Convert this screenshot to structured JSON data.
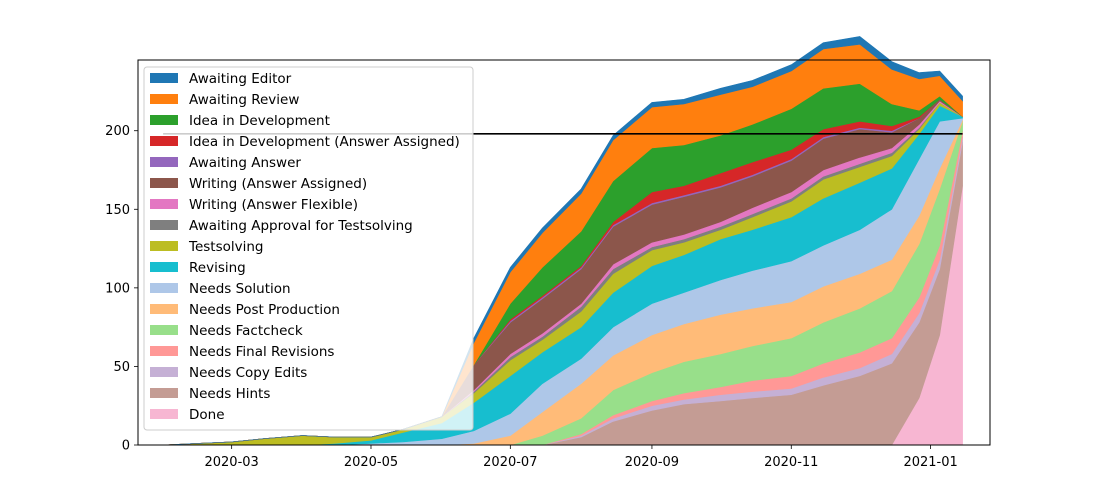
{
  "chart_data": {
    "type": "area",
    "stacked": true,
    "title": "",
    "xlabel": "",
    "ylabel": "",
    "x_axis": {
      "kind": "date",
      "range": [
        "2020-01-20",
        "2021-01-27"
      ],
      "ticks": [
        {
          "date": "2020-03-01",
          "label": "2020-03"
        },
        {
          "date": "2020-05-01",
          "label": "2020-05"
        },
        {
          "date": "2020-07-01",
          "label": "2020-07"
        },
        {
          "date": "2020-09-01",
          "label": "2020-09"
        },
        {
          "date": "2020-11-01",
          "label": "2020-11"
        },
        {
          "date": "2021-01-01",
          "label": "2021-01"
        }
      ]
    },
    "y_axis": {
      "range": [
        0,
        245
      ],
      "ticks": [
        0,
        50,
        100,
        150,
        200
      ]
    },
    "grid": false,
    "legend_position": "upper-left",
    "reference_line": {
      "y": 198,
      "color": "#000000",
      "x_start": "2020-01-31",
      "x_end": "2021-01-15"
    },
    "dates": [
      "2020-01-31",
      "2020-02-15",
      "2020-03-01",
      "2020-03-15",
      "2020-04-01",
      "2020-04-15",
      "2020-05-01",
      "2020-05-15",
      "2020-06-01",
      "2020-06-15",
      "2020-07-01",
      "2020-07-15",
      "2020-08-01",
      "2020-08-15",
      "2020-09-01",
      "2020-09-15",
      "2020-10-01",
      "2020-10-15",
      "2020-11-01",
      "2020-11-15",
      "2020-12-01",
      "2020-12-15",
      "2020-12-27",
      "2021-01-05",
      "2021-01-15"
    ],
    "series": [
      {
        "name": "Done",
        "color": "#f7b6d2",
        "values": [
          0,
          0,
          0,
          0,
          0,
          0,
          0,
          0,
          0,
          0,
          0,
          0,
          0,
          0,
          0,
          0,
          0,
          0,
          0,
          0,
          0,
          0,
          30,
          70,
          165
        ]
      },
      {
        "name": "Needs Hints",
        "color": "#c49c94",
        "values": [
          0,
          0,
          0,
          0,
          0,
          0,
          0,
          0,
          0,
          0,
          0,
          0,
          5,
          15,
          22,
          26,
          28,
          30,
          32,
          38,
          44,
          52,
          48,
          42,
          28
        ]
      },
      {
        "name": "Needs Copy Edits",
        "color": "#c5b0d5",
        "values": [
          0,
          0,
          0,
          0,
          0,
          0,
          0,
          0,
          0,
          0,
          0,
          0,
          1,
          2,
          3,
          3,
          4,
          4,
          4,
          5,
          5,
          6,
          6,
          6,
          3
        ]
      },
      {
        "name": "Needs Final Revisions",
        "color": "#ff9896",
        "values": [
          0,
          0,
          0,
          0,
          0,
          0,
          0,
          0,
          0,
          0,
          0,
          0,
          1,
          2,
          3,
          4,
          5,
          7,
          8,
          9,
          10,
          10,
          10,
          9,
          4
        ]
      },
      {
        "name": "Needs Factcheck",
        "color": "#98df8a",
        "values": [
          0,
          0,
          0,
          0,
          0,
          0,
          0,
          0,
          0,
          0,
          0,
          6,
          10,
          16,
          18,
          20,
          21,
          22,
          24,
          26,
          28,
          30,
          34,
          36,
          6
        ]
      },
      {
        "name": "Needs Post Production",
        "color": "#ffbb78",
        "values": [
          0,
          0,
          0,
          0,
          0,
          0,
          0,
          0,
          0,
          1,
          6,
          15,
          22,
          22,
          24,
          24,
          25,
          24,
          23,
          23,
          22,
          20,
          18,
          13,
          1
        ]
      },
      {
        "name": "Needs Solution",
        "color": "#aec7e8",
        "values": [
          0,
          0,
          0,
          0,
          0,
          0,
          1,
          2,
          4,
          8,
          14,
          18,
          16,
          18,
          20,
          20,
          22,
          24,
          26,
          26,
          28,
          32,
          36,
          30,
          1
        ]
      },
      {
        "name": "Revising",
        "color": "#17becf",
        "values": [
          0,
          0,
          0,
          0,
          0,
          1,
          2,
          6,
          10,
          18,
          24,
          20,
          20,
          22,
          24,
          24,
          26,
          26,
          28,
          30,
          30,
          26,
          16,
          10,
          1
        ]
      },
      {
        "name": "Testsolving",
        "color": "#bcbd22",
        "values": [
          0,
          1,
          2,
          4,
          6,
          4,
          2,
          2,
          4,
          6,
          10,
          8,
          10,
          12,
          10,
          8,
          6,
          8,
          10,
          12,
          10,
          8,
          3,
          2,
          0
        ]
      },
      {
        "name": "Awaiting Approval for Testsolving",
        "color": "#7f7f7f",
        "values": [
          0,
          0,
          0,
          0,
          0,
          0,
          0,
          0,
          0,
          1,
          2,
          2,
          3,
          3,
          2,
          2,
          2,
          2,
          2,
          2,
          2,
          2,
          1,
          0,
          0
        ]
      },
      {
        "name": "Writing (Answer Flexible)",
        "color": "#e377c2",
        "values": [
          0,
          0,
          0,
          0,
          0,
          0,
          0,
          0,
          0,
          1,
          2,
          2,
          2,
          3,
          3,
          3,
          3,
          4,
          4,
          4,
          4,
          3,
          2,
          1,
          0
        ]
      },
      {
        "name": "Writing (Answer Assigned)",
        "color": "#8c564b",
        "values": [
          0,
          0,
          0,
          0,
          0,
          0,
          0,
          0,
          0,
          16,
          20,
          22,
          22,
          24,
          24,
          24,
          22,
          20,
          20,
          20,
          18,
          10,
          4,
          1,
          0
        ]
      },
      {
        "name": "Awaiting Answer",
        "color": "#9467bd",
        "values": [
          0,
          0,
          0,
          0,
          0,
          0,
          0,
          0,
          0,
          0,
          1,
          1,
          1,
          1,
          1,
          1,
          1,
          1,
          1,
          1,
          1,
          1,
          0,
          0,
          0
        ]
      },
      {
        "name": "Idea in Development (Answer Assigned)",
        "color": "#d62728",
        "values": [
          0,
          0,
          0,
          0,
          0,
          0,
          0,
          0,
          0,
          0,
          1,
          1,
          1,
          2,
          7,
          6,
          8,
          8,
          6,
          5,
          4,
          3,
          1,
          0,
          0
        ]
      },
      {
        "name": "Idea in Development",
        "color": "#2ca02c",
        "values": [
          0,
          0,
          0,
          0,
          0,
          0,
          0,
          0,
          0,
          0,
          10,
          18,
          22,
          26,
          28,
          26,
          24,
          24,
          26,
          26,
          24,
          14,
          4,
          2,
          0
        ]
      },
      {
        "name": "Awaiting Review",
        "color": "#ff7f0e",
        "values": [
          0,
          0,
          0,
          0,
          0,
          0,
          0,
          0,
          0,
          14,
          20,
          22,
          24,
          26,
          26,
          26,
          26,
          24,
          24,
          25,
          25,
          22,
          20,
          13,
          10
        ]
      },
      {
        "name": "Awaiting Editor",
        "color": "#1f77b4",
        "values": [
          0,
          0,
          0,
          0,
          0,
          0,
          0,
          0,
          0,
          3,
          3,
          3,
          3,
          3,
          3,
          3,
          4,
          4,
          4,
          4,
          5,
          5,
          4,
          3,
          3
        ]
      }
    ],
    "legend_order": [
      "Awaiting Editor",
      "Awaiting Review",
      "Idea in Development",
      "Idea in Development (Answer Assigned)",
      "Awaiting Answer",
      "Writing (Answer Assigned)",
      "Writing (Answer Flexible)",
      "Awaiting Approval for Testsolving",
      "Testsolving",
      "Revising",
      "Needs Solution",
      "Needs Post Production",
      "Needs Factcheck",
      "Needs Final Revisions",
      "Needs Copy Edits",
      "Needs Hints",
      "Done"
    ]
  }
}
